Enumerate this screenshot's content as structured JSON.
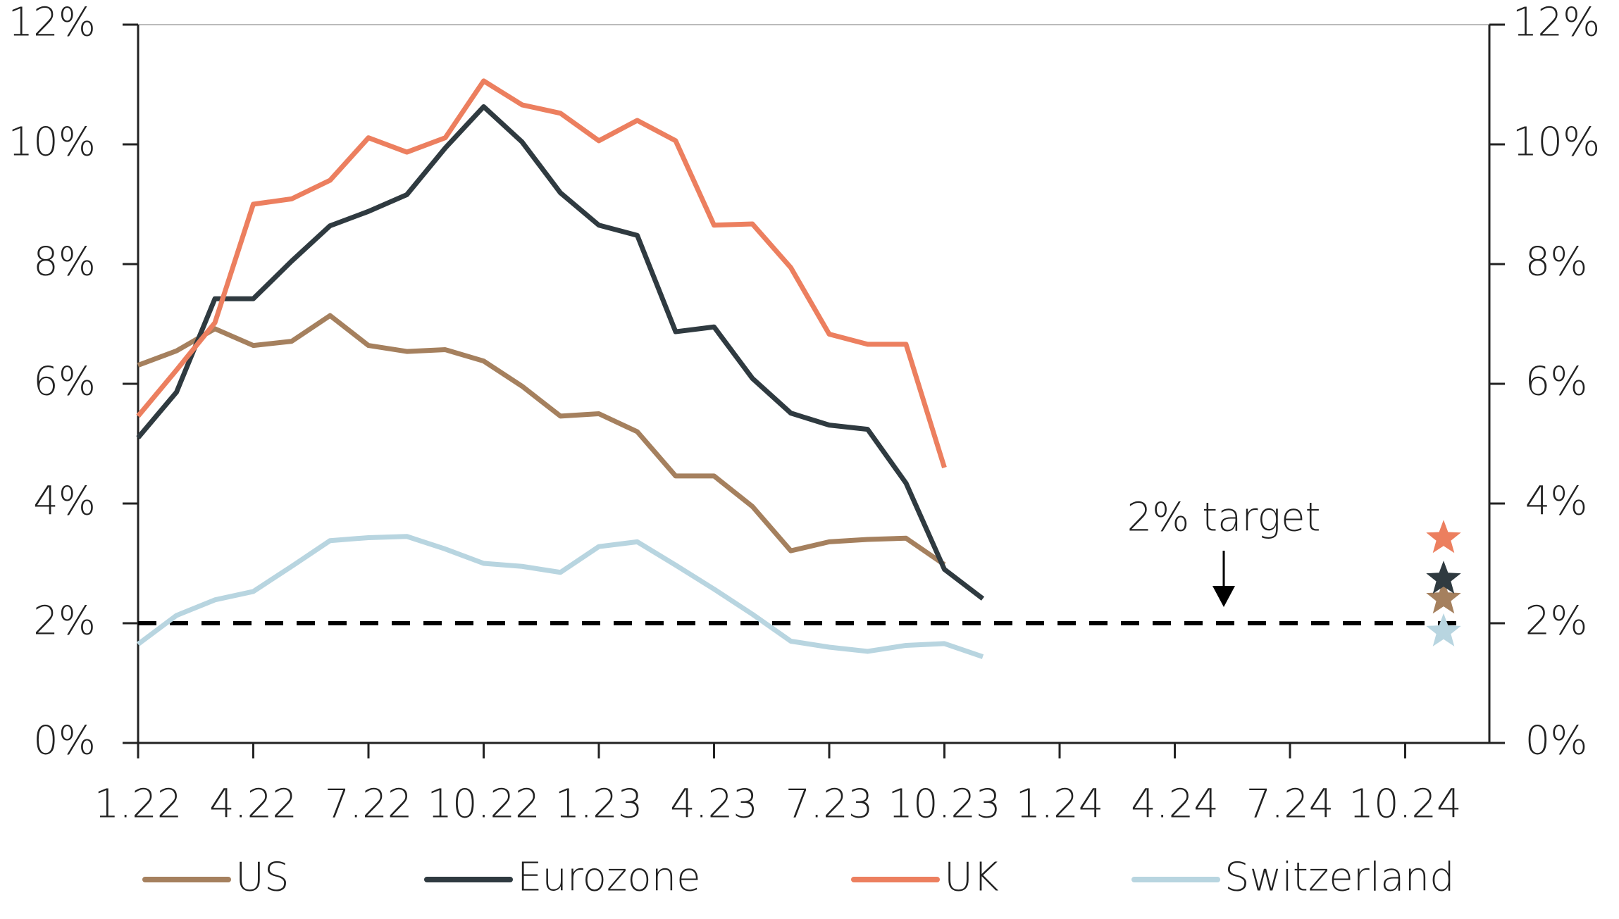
{
  "chart_data": {
    "type": "line",
    "categories": [
      "1.22",
      null,
      null,
      "4.22",
      null,
      null,
      "7.22",
      null,
      null,
      "10.22",
      null,
      null,
      "1.23",
      null,
      null,
      "4.23",
      null,
      null,
      "7.23",
      null,
      null,
      "10.23",
      null,
      null,
      "1.24",
      null,
      null,
      "4.24",
      null,
      null,
      "7.24",
      null,
      null,
      "10.24",
      null,
      null
    ],
    "series": [
      {
        "name": "US",
        "color": "#a5805e",
        "values": [
          6.31,
          6.55,
          6.92,
          6.64,
          6.71,
          7.14,
          6.64,
          6.54,
          6.57,
          6.38,
          5.96,
          5.46,
          5.5,
          5.2,
          4.46,
          4.46,
          3.95,
          3.21,
          3.36,
          3.4,
          3.42,
          2.98,
          null,
          null,
          null,
          null,
          null,
          null,
          null,
          null,
          null,
          null,
          null,
          null,
          2.41,
          null
        ]
      },
      {
        "name": "Eurozone",
        "color": "#2f3a40",
        "values": [
          5.1,
          5.86,
          7.42,
          7.42,
          8.05,
          8.64,
          8.88,
          9.16,
          9.94,
          10.63,
          10.04,
          9.19,
          8.65,
          8.48,
          6.87,
          6.95,
          6.09,
          5.51,
          5.31,
          5.24,
          4.34,
          2.9,
          2.41,
          null,
          null,
          null,
          null,
          null,
          null,
          null,
          null,
          null,
          null,
          null,
          2.74,
          null
        ]
      },
      {
        "name": "UK",
        "color": "#ec7f5f",
        "values": [
          5.46,
          6.23,
          7.02,
          9.0,
          9.09,
          9.4,
          10.11,
          9.87,
          10.11,
          11.06,
          10.66,
          10.52,
          10.06,
          10.4,
          10.06,
          8.65,
          8.67,
          7.94,
          6.83,
          6.66,
          6.66,
          4.6,
          null,
          null,
          null,
          null,
          null,
          null,
          null,
          null,
          null,
          null,
          null,
          null,
          3.42,
          null
        ]
      },
      {
        "name": "Switzerland",
        "color": "#b8d5e0",
        "values": [
          1.65,
          2.13,
          2.39,
          2.53,
          2.95,
          3.38,
          3.43,
          3.45,
          3.24,
          3.0,
          2.95,
          2.85,
          3.28,
          3.36,
          2.97,
          2.57,
          2.15,
          1.7,
          1.6,
          1.53,
          1.63,
          1.66,
          1.44,
          null,
          null,
          null,
          null,
          null,
          null,
          null,
          null,
          null,
          null,
          null,
          1.86,
          null
        ]
      }
    ],
    "reference_line": {
      "value": 2,
      "label": "2% target",
      "color": "#000000"
    },
    "ylim": [
      0,
      12
    ],
    "yticks": [
      {
        "value": 0,
        "label": "0%"
      },
      {
        "value": 2,
        "label": "2%"
      },
      {
        "value": 4,
        "label": "4%"
      },
      {
        "value": 6,
        "label": "6%"
      },
      {
        "value": 8,
        "label": "8%"
      },
      {
        "value": 10,
        "label": "10%"
      },
      {
        "value": 12,
        "label": "12%"
      }
    ],
    "y2lim": [
      0,
      12
    ],
    "y2ticks": [
      {
        "value": 0,
        "label": "0%"
      },
      {
        "value": 2,
        "label": "2%"
      },
      {
        "value": 4,
        "label": "4%"
      },
      {
        "value": 6,
        "label": "6%"
      },
      {
        "value": 8,
        "label": "8%"
      },
      {
        "value": 10,
        "label": "10%"
      },
      {
        "value": 12,
        "label": "12%"
      }
    ],
    "legend": "bottom"
  }
}
